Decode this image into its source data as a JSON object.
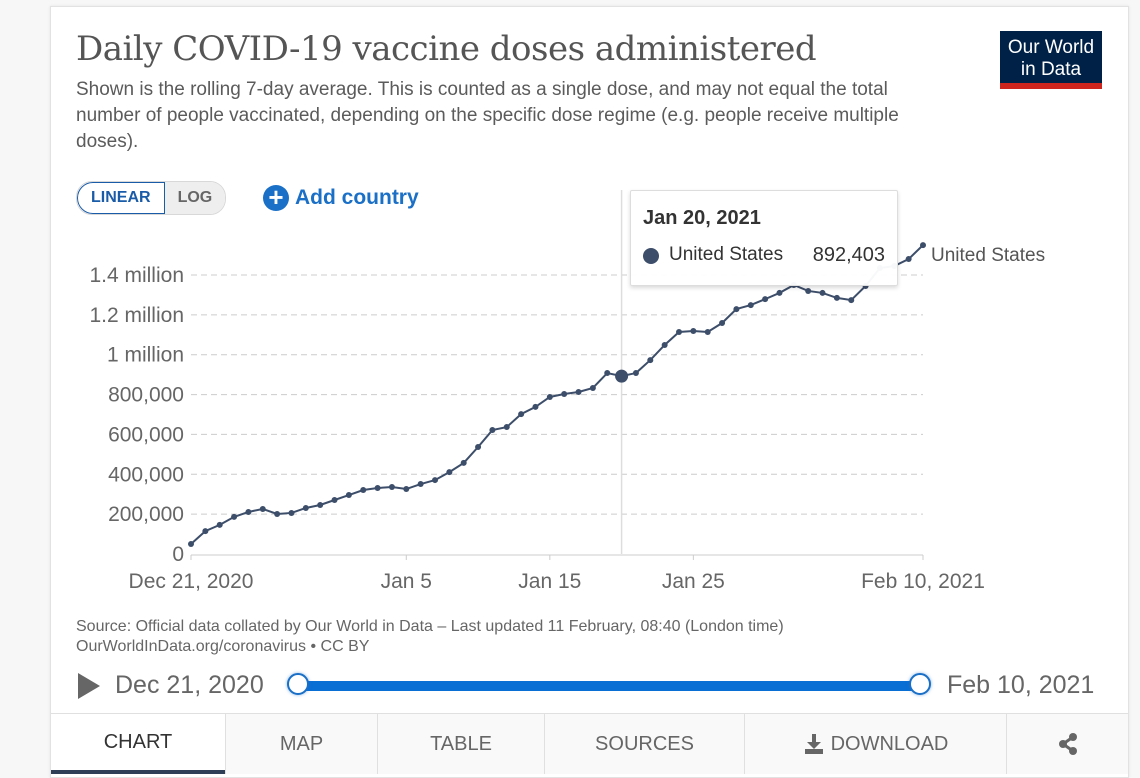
{
  "header": {
    "title": "Daily COVID-19 vaccine doses administered",
    "subtitle": "Shown is the rolling 7-day average. This is counted as a single dose, and may not equal the total number of people vaccinated, depending on the specific dose regime (e.g. people receive multiple doses).",
    "logo_line1": "Our World",
    "logo_line2": "in Data"
  },
  "controls": {
    "scale_options": [
      "LINEAR",
      "LOG"
    ],
    "scale_selected": "LINEAR",
    "add_country_label": "Add country",
    "add_country_icon": "plus-circle-icon"
  },
  "tooltip": {
    "date": "Jan 20, 2021",
    "series": "United States",
    "value": "892,403"
  },
  "footer": {
    "source_line1": "Source: Official data collated by Our World in Data – Last updated 11 February, 08:40 (London time)",
    "source_line2": "OurWorldInData.org/coronavirus • CC BY"
  },
  "timeline": {
    "play_icon": "play-icon",
    "start_label": "Dec 21, 2020",
    "end_label": "Feb 10, 2021",
    "range_start_fraction": 0,
    "range_end_fraction": 1
  },
  "tabs": [
    {
      "label": "CHART",
      "active": true
    },
    {
      "label": "MAP",
      "active": false
    },
    {
      "label": "TABLE",
      "active": false
    },
    {
      "label": "SOURCES",
      "active": false
    },
    {
      "label": "DOWNLOAD",
      "icon": "download-icon",
      "active": false
    },
    {
      "label": "",
      "icon": "share-icon",
      "active": false
    }
  ],
  "colors": {
    "series": "#3d4e6a",
    "accent": "#1a6fc7",
    "logo_bg": "#002147",
    "logo_stripe": "#ce261e"
  },
  "chart_data": {
    "type": "line",
    "title": "Daily COVID-19 vaccine doses administered",
    "xlabel": "",
    "ylabel": "",
    "x_start": "2020-12-21",
    "x_end": "2021-02-10",
    "x_tick_labels": [
      "Dec 21, 2020",
      "Jan 5",
      "Jan 15",
      "Jan 25",
      "Feb 10, 2021"
    ],
    "x_tick_day_offsets": [
      0,
      15,
      25,
      35,
      51
    ],
    "y_tick_values": [
      0,
      200000,
      400000,
      600000,
      800000,
      1000000,
      1200000,
      1400000
    ],
    "y_tick_labels": [
      "0",
      "200,000",
      "400,000",
      "600,000",
      "800,000",
      "1 million",
      "1.2 million",
      "1.4 million"
    ],
    "ylim": [
      0,
      1400000
    ],
    "grid": true,
    "legend": "inline-right",
    "highlight_day_offset": 30,
    "series": [
      {
        "name": "United States",
        "values": [
          50000,
          115000,
          146000,
          186000,
          211000,
          226000,
          201000,
          206000,
          231000,
          246000,
          271000,
          296000,
          321000,
          331000,
          336000,
          326000,
          351000,
          371000,
          411000,
          457000,
          537000,
          622000,
          637000,
          702000,
          738000,
          788000,
          803000,
          813000,
          833000,
          908000,
          892403,
          908000,
          973000,
          1049000,
          1114000,
          1119000,
          1114000,
          1159000,
          1229000,
          1249000,
          1279000,
          1310000,
          1350000,
          1320000,
          1310000,
          1285000,
          1274000,
          1345000,
          1435000,
          1445000,
          1480000,
          1550000
        ]
      }
    ]
  }
}
